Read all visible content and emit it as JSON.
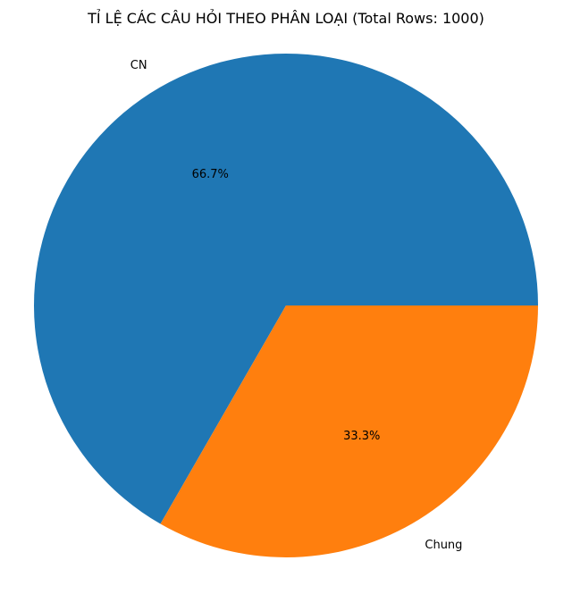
{
  "chart_data": {
    "type": "pie",
    "title": "TỈ LỆ CÁC CÂU HỎI THEO PHÂN LOẠI (Total Rows: 1000)",
    "labels": [
      "CN",
      "Chung"
    ],
    "values": [
      66.7,
      33.3
    ],
    "percent_labels": [
      "66.7%",
      "33.3%"
    ],
    "colors": [
      "#1f77b4",
      "#ff7f0e"
    ],
    "start_angle_deg": 0,
    "direction": "counterclockwise",
    "legend": "none"
  }
}
